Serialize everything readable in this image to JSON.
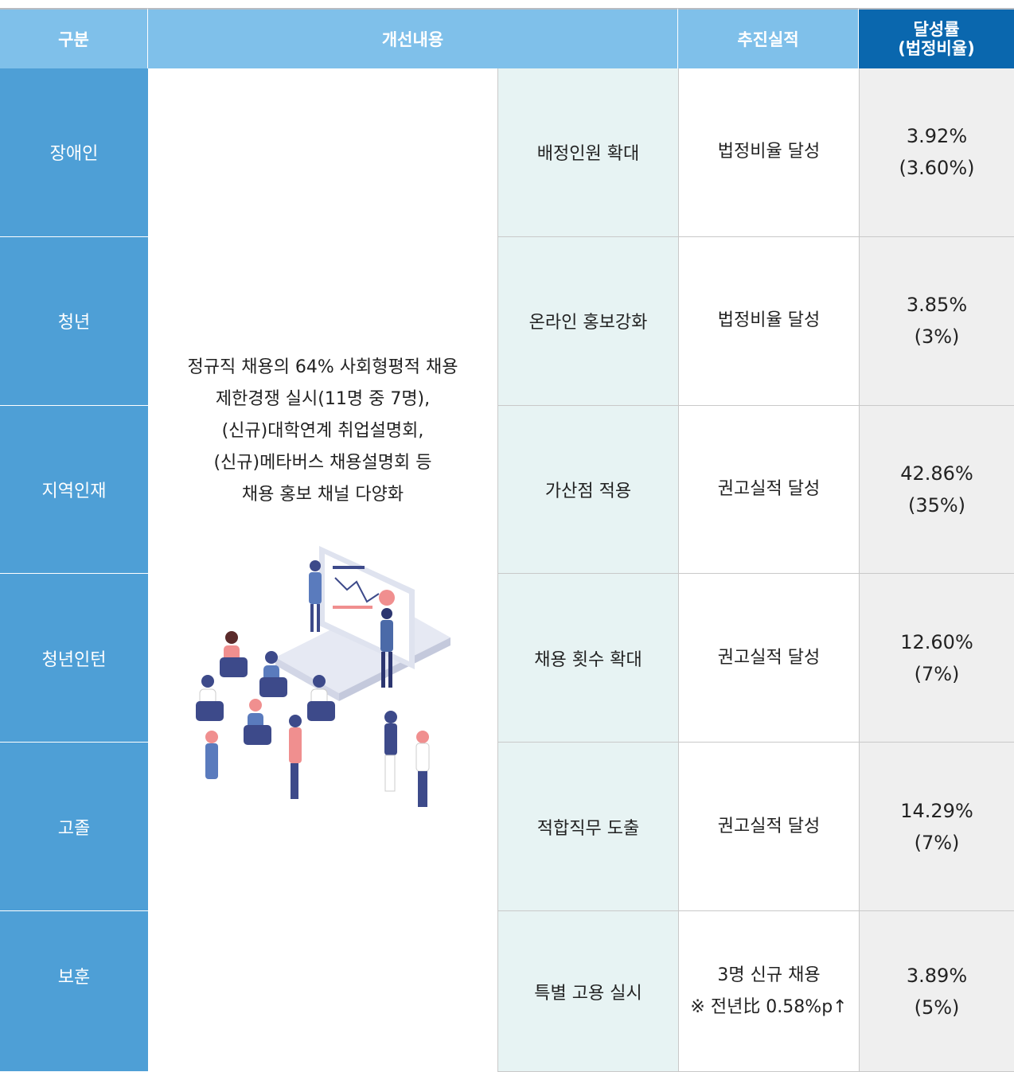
{
  "header": [
    "구분",
    "개선내용",
    "추진실적",
    "달성률",
    "(법정비율)"
  ],
  "improvement": [
    "정규직 채용의 64% 사회형평적 채용",
    "제한경쟁 실시(11명 중 7명),",
    "(신규)대학연계 취업설명회,",
    "(신규)메타버스 채용설명회 등",
    "채용 홍보 채널 다양화"
  ],
  "rows": [
    {
      "category": "장애인",
      "action": "배정인원 확대",
      "result": [
        "법정비율 달성"
      ],
      "rate": "3.92%",
      "legal": "(3.60%)"
    },
    {
      "category": "청년",
      "action": "온라인 홍보강화",
      "result": [
        "법정비율 달성"
      ],
      "rate": "3.85%",
      "legal": "(3%)"
    },
    {
      "category": "지역인재",
      "action": "가산점 적용",
      "result": [
        "권고실적 달성"
      ],
      "rate": "42.86%",
      "legal": "(35%)"
    },
    {
      "category": "청년인턴",
      "action": "채용 횟수 확대",
      "result": [
        "권고실적 달성"
      ],
      "rate": "12.60%",
      "legal": "(7%)"
    },
    {
      "category": "고졸",
      "action": "적합직무 도출",
      "result": [
        "권고실적 달성"
      ],
      "rate": "14.29%",
      "legal": "(7%)"
    },
    {
      "category": "보훈",
      "action": "특별 고용 실시",
      "result": [
        "3명 신규 채용",
        "※ 전년比 0.58%p↑"
      ],
      "rate": "3.89%",
      "legal": "(5%)"
    }
  ]
}
